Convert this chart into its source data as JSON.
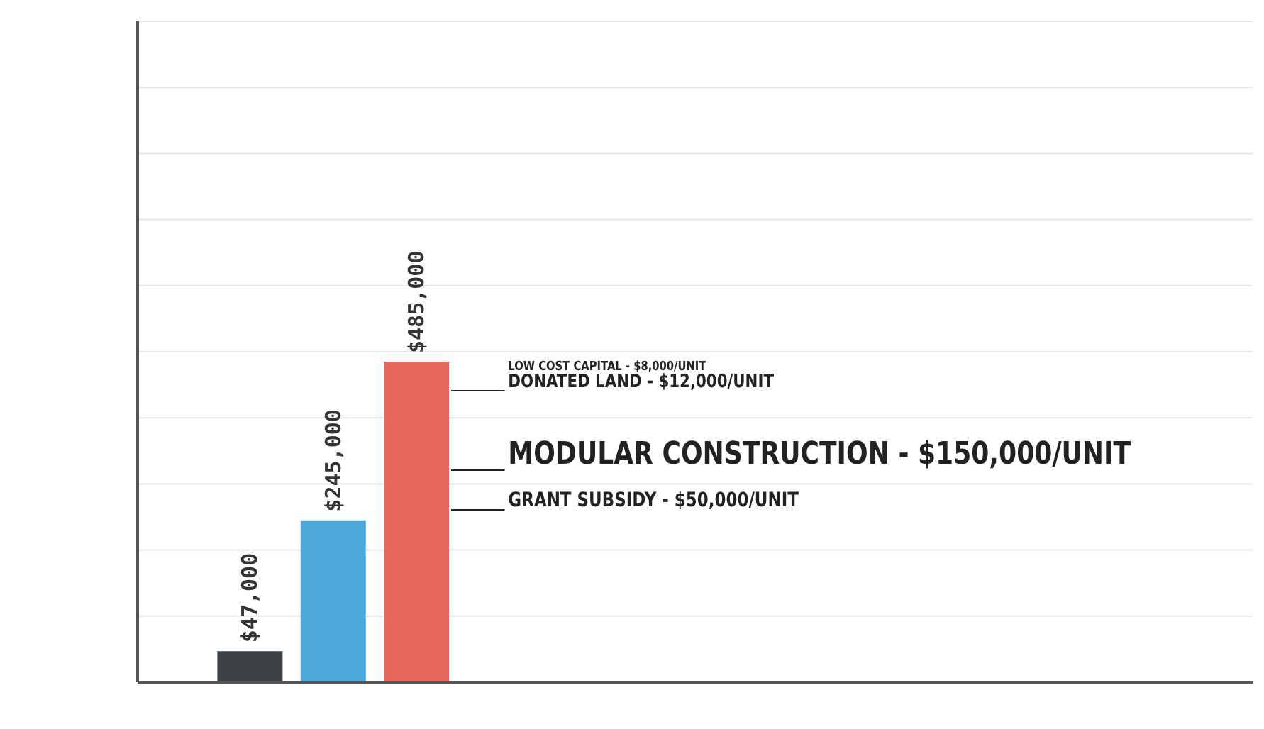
{
  "chart_data": {
    "type": "bar",
    "categories": [
      null,
      null,
      null
    ],
    "values": [
      47000,
      245000,
      485000
    ],
    "colors": [
      "#3b4045",
      "#4aa9d9",
      "#e8685c"
    ],
    "value_labels": [
      "$47,000",
      "$245,000",
      "$485,000"
    ],
    "ylim": [
      0,
      1000000
    ],
    "yticks": [
      {
        "value": 100000,
        "label": null
      },
      {
        "value": 200000,
        "label": null
      },
      {
        "value": 300000,
        "label": null
      },
      {
        "value": 400000,
        "label": null
      },
      {
        "value": 500000,
        "label": null
      },
      {
        "value": 600000,
        "label": null
      },
      {
        "value": 700000,
        "label": null
      },
      {
        "value": 800000,
        "label": null
      },
      {
        "value": 900000,
        "label": null
      }
    ],
    "grid": "y",
    "annotations": [
      "LOW COST CAPITAL - $8,000/UNIT",
      "DONATED LAND - $12,000/UNIT",
      "MODULAR CONSTRUCTION - $150,000/UNIT",
      "GRANT SUBSIDY - $50,000/UNIT"
    ]
  }
}
